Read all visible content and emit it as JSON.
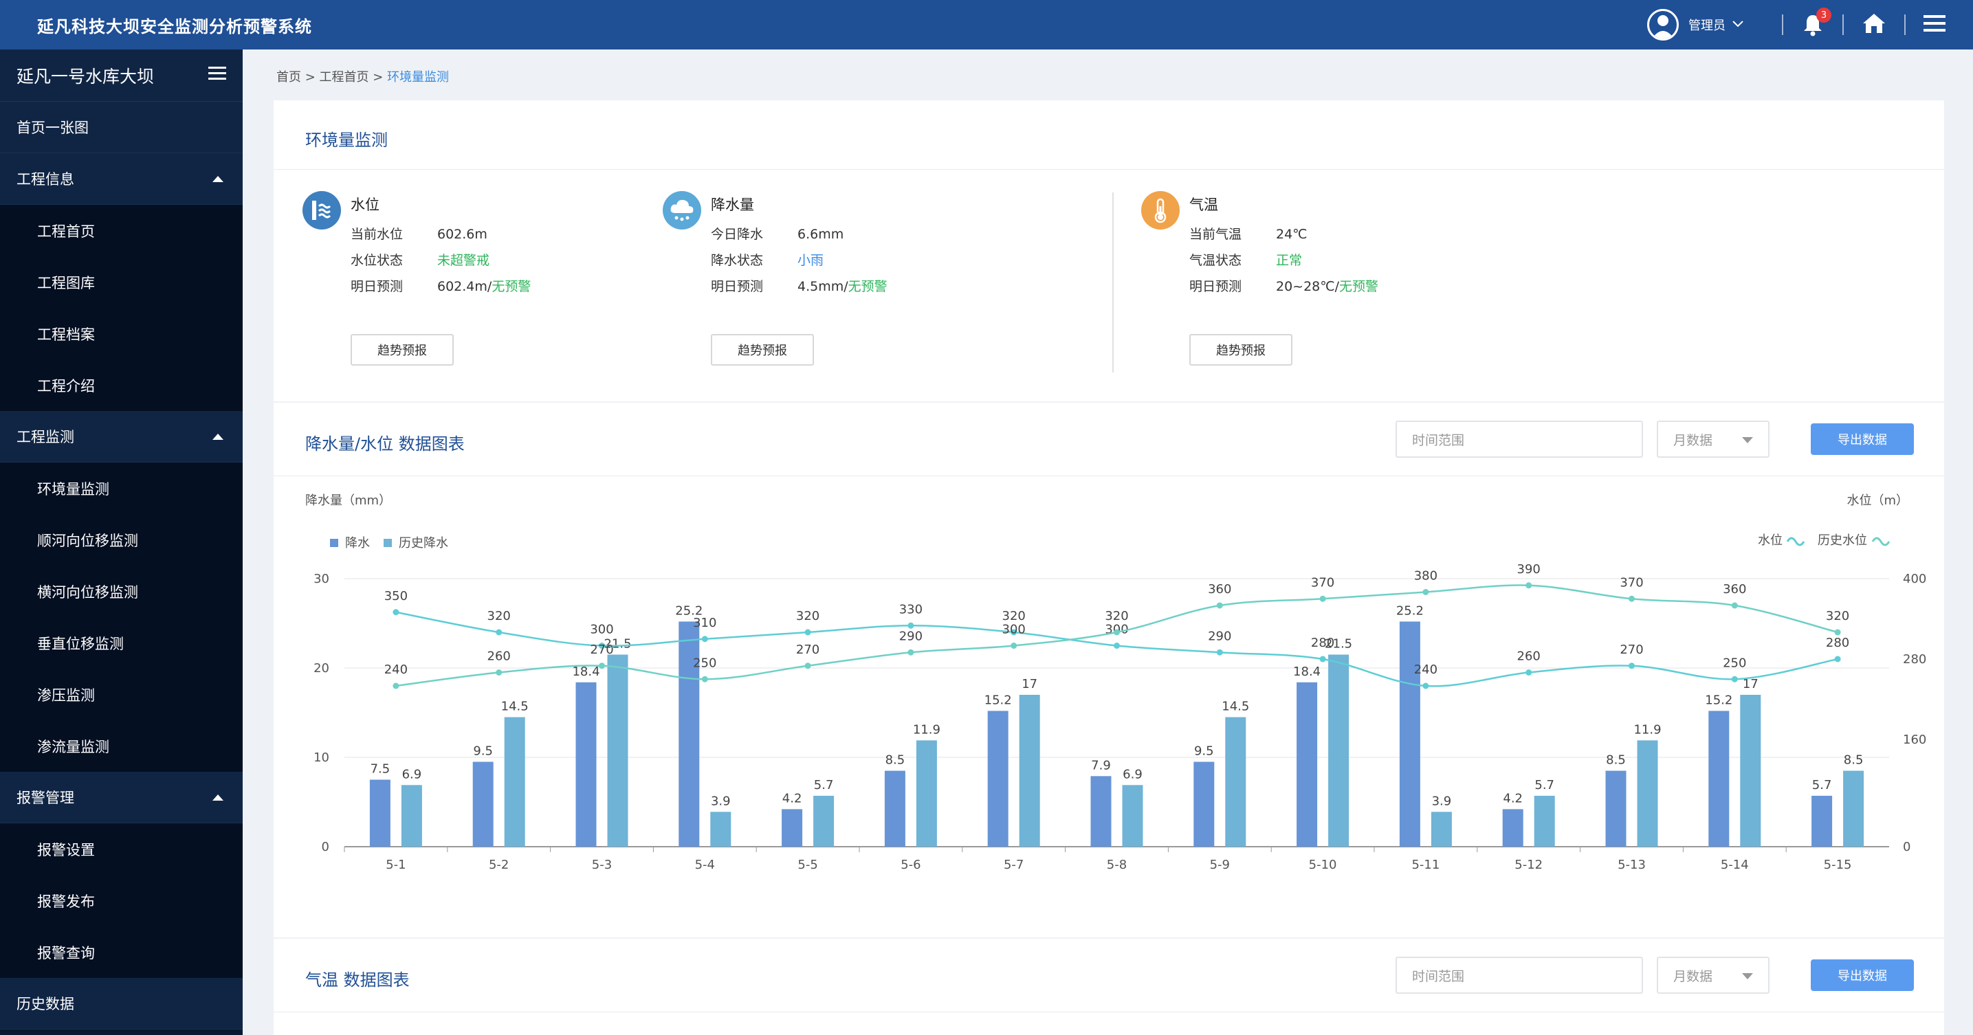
{
  "app": {
    "title": "延凡科技大坝安全监测分析预警系统"
  },
  "topbar": {
    "user_name": "管理员",
    "notification_count": "3"
  },
  "sidebar": {
    "header": "延凡一号水库大坝",
    "items": [
      {
        "label": "首页一张图",
        "type": "item"
      },
      {
        "label": "工程信息",
        "type": "group"
      },
      {
        "label": "工程首页",
        "type": "sub"
      },
      {
        "label": "工程图库",
        "type": "sub"
      },
      {
        "label": "工程档案",
        "type": "sub"
      },
      {
        "label": "工程介绍",
        "type": "sub"
      },
      {
        "label": "工程监测",
        "type": "group"
      },
      {
        "label": "环境量监测",
        "type": "sub"
      },
      {
        "label": "顺河向位移监测",
        "type": "sub"
      },
      {
        "label": "横河向位移监测",
        "type": "sub"
      },
      {
        "label": "垂直位移监测",
        "type": "sub"
      },
      {
        "label": "渗压监测",
        "type": "sub"
      },
      {
        "label": "渗流量监测",
        "type": "sub"
      },
      {
        "label": "报警管理",
        "type": "group"
      },
      {
        "label": "报警设置",
        "type": "sub"
      },
      {
        "label": "报警发布",
        "type": "sub"
      },
      {
        "label": "报警查询",
        "type": "sub"
      },
      {
        "label": "历史数据",
        "type": "item"
      }
    ]
  },
  "breadcrumb": {
    "home": "首页",
    "sep1": " > ",
    "project": "工程首页",
    "sep2": " > ",
    "current": "环境量监测"
  },
  "env": {
    "title": "环境量监测",
    "water": {
      "name": "水位",
      "row1_label": "当前水位",
      "row1_value": "602.6m",
      "row2_label": "水位状态",
      "row2_value": "未超警戒",
      "row3_label": "明日预测",
      "row3_value": "602.4m/",
      "row3_status": "无预警",
      "button": "趋势预报"
    },
    "rain": {
      "name": "降水量",
      "row1_label": "今日降水",
      "row1_value": "6.6mm",
      "row2_label": "降水状态",
      "row2_value": "小雨",
      "row3_label": "明日预测",
      "row3_value": "4.5mm/",
      "row3_status": "无预警",
      "button": "趋势预报"
    },
    "temp": {
      "name": "气温",
      "row1_label": "当前气温",
      "row1_value": "24℃",
      "row2_label": "气温状态",
      "row2_value": "正常",
      "row3_label": "明日预测",
      "row3_value": "20~28℃/",
      "row3_status": "无预警",
      "button": "趋势预报"
    }
  },
  "rain_chart_section": {
    "title": "降水量/水位 数据图表",
    "time_placeholder": "时间范围",
    "period_select": "月数据",
    "export": "导出数据"
  },
  "temp_chart_section": {
    "title": "气温  数据图表",
    "time_placeholder": "时间范围",
    "period_select": "月数据",
    "export": "导出数据"
  },
  "colors": {
    "rain": "#6694d6",
    "hist_rain": "#6fb3d6",
    "water_line": "#5ecdd5",
    "hist_water_line": "#6fd0c6",
    "header": "#1f4f95",
    "sidebar": "#0b1a33",
    "accent": "#3a8be0"
  },
  "chart_data": {
    "type": "bar",
    "ylabel": "降水量（mm）",
    "y2label": "水位（m）",
    "categories": [
      "5-1",
      "5-2",
      "5-3",
      "5-4",
      "5-5",
      "5-6",
      "5-7",
      "5-8",
      "5-9",
      "5-10",
      "5-11",
      "5-12",
      "5-13",
      "5-14",
      "5-15"
    ],
    "ylim": [
      0,
      30
    ],
    "yticks": [
      0,
      10,
      20,
      30
    ],
    "y2lim": [
      0,
      400
    ],
    "y2ticks": [
      0,
      160,
      280,
      400
    ],
    "legend_left": [
      "降水",
      "历史降水"
    ],
    "legend_right": [
      "水位",
      "历史水位"
    ],
    "series": [
      {
        "name": "降水",
        "type": "bar",
        "axis": "left",
        "values": [
          7.5,
          9.5,
          18.4,
          25.2,
          4.2,
          8.5,
          15.2,
          7.9,
          9.5,
          18.4,
          25.2,
          4.2,
          8.5,
          15.2,
          5.7
        ]
      },
      {
        "name": "历史降水",
        "type": "bar",
        "axis": "left",
        "values": [
          6.9,
          14.5,
          21.5,
          3.9,
          5.7,
          11.9,
          17,
          6.9,
          14.5,
          21.5,
          3.9,
          5.7,
          11.9,
          17,
          8.5
        ]
      },
      {
        "name": "水位",
        "type": "line",
        "axis": "right",
        "values": [
          350,
          320,
          300,
          310,
          320,
          330,
          320,
          300,
          290,
          280,
          240,
          260,
          270,
          250,
          280
        ]
      },
      {
        "name": "历史水位",
        "type": "line",
        "axis": "right",
        "values": [
          240,
          260,
          270,
          250,
          270,
          290,
          300,
          320,
          360,
          370,
          380,
          390,
          370,
          360,
          320
        ]
      }
    ]
  }
}
